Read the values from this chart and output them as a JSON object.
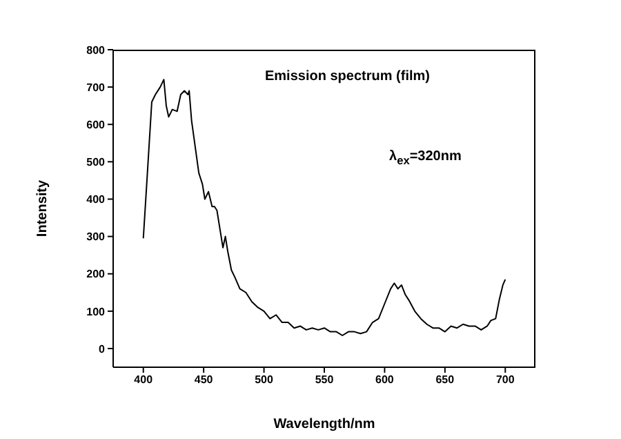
{
  "chart_data": {
    "type": "line",
    "xlabel": "Wavelength/nm",
    "ylabel": "Intensity",
    "annotations": [
      "Emission spectrum (film)",
      "λ$_{ex}$=320nm"
    ],
    "xlim": [
      375,
      725
    ],
    "xticks": [
      400,
      450,
      500,
      550,
      600,
      650,
      700
    ],
    "ylim": [
      -50,
      800
    ],
    "yticks": [
      0,
      100,
      200,
      300,
      400,
      500,
      600,
      700,
      800
    ],
    "marker": "none",
    "line_style": "solid",
    "x": [
      400,
      403,
      407,
      410,
      414,
      417,
      419,
      421,
      424,
      428,
      431,
      434,
      437,
      438,
      440,
      443,
      446,
      449,
      451,
      454,
      457,
      459,
      461,
      463,
      466,
      468,
      470,
      473,
      476,
      480,
      485,
      490,
      495,
      500,
      505,
      510,
      515,
      520,
      525,
      530,
      535,
      540,
      545,
      550,
      555,
      560,
      565,
      570,
      575,
      580,
      585,
      590,
      595,
      600,
      605,
      608,
      611,
      614,
      617,
      620,
      625,
      630,
      635,
      640,
      645,
      650,
      655,
      660,
      665,
      670,
      675,
      680,
      685,
      688,
      692,
      695,
      698,
      700
    ],
    "series": [
      {
        "color": "#000000",
        "values": [
          295,
          450,
          660,
          680,
          700,
          720,
          650,
          620,
          640,
          635,
          680,
          690,
          680,
          690,
          610,
          540,
          470,
          440,
          400,
          420,
          380,
          380,
          370,
          330,
          270,
          300,
          260,
          210,
          190,
          160,
          150,
          125,
          110,
          100,
          80,
          90,
          70,
          70,
          55,
          60,
          50,
          55,
          50,
          55,
          45,
          45,
          35,
          45,
          45,
          40,
          45,
          70,
          80,
          120,
          160,
          175,
          160,
          170,
          145,
          130,
          100,
          80,
          65,
          55,
          55,
          45,
          60,
          55,
          65,
          60,
          60,
          50,
          60,
          75,
          80,
          130,
          170,
          185
        ]
      }
    ]
  }
}
